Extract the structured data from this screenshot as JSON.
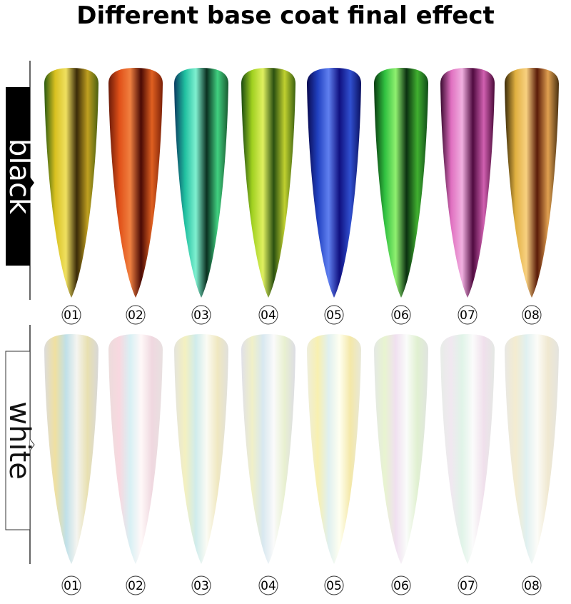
{
  "title": "Different base coat final effect",
  "rows": [
    {
      "label": "black",
      "items": [
        "01",
        "02",
        "03",
        "04",
        "05",
        "06",
        "07",
        "08"
      ]
    },
    {
      "label": "white",
      "items": [
        "01",
        "02",
        "03",
        "04",
        "05",
        "06",
        "07",
        "08"
      ]
    }
  ]
}
